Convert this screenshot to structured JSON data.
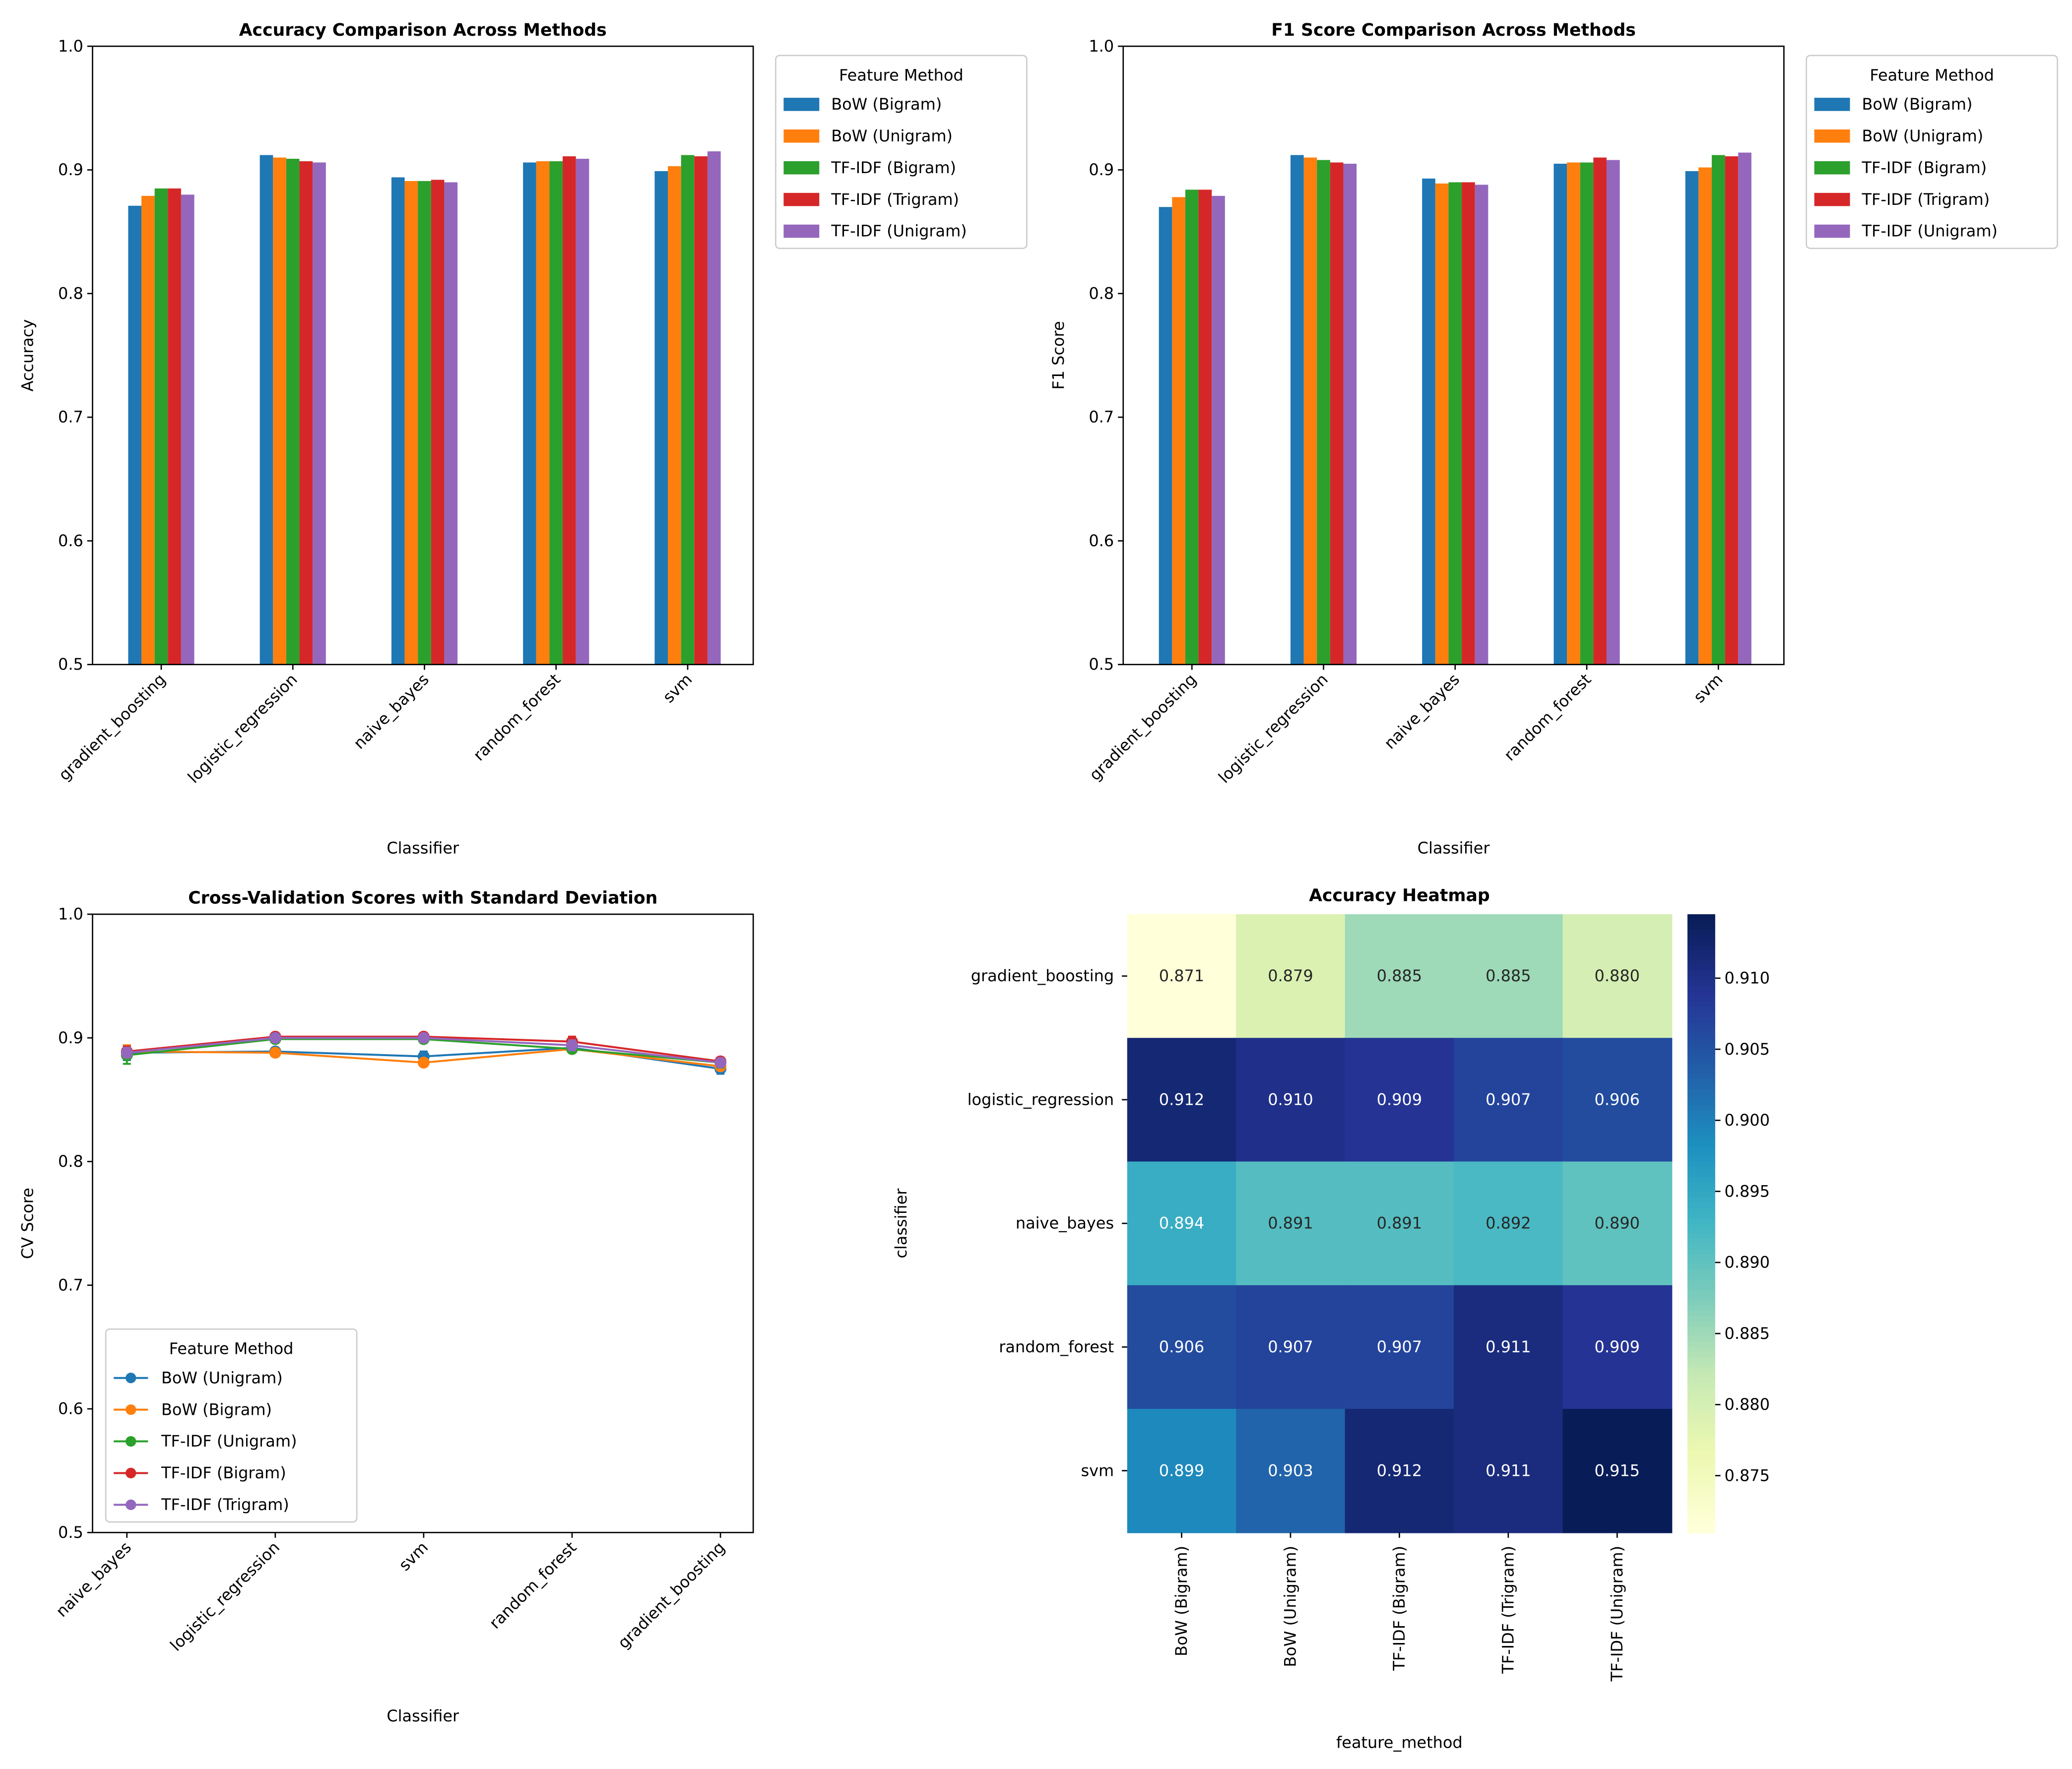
{
  "colors": {
    "BoW (Bigram)": "#1f77b4",
    "BoW (Unigram)": "#ff7f0e",
    "TF-IDF (Bigram)": "#2ca02c",
    "TF-IDF (Trigram)": "#d62728",
    "TF-IDF (Unigram)": "#9467bd",
    "BoW (Unigram) cv": "#1f77b4"
  },
  "chart_data": [
    {
      "type": "bar",
      "title": "Accuracy Comparison Across Methods",
      "xlabel": "Classifier",
      "ylabel": "Accuracy",
      "ylim": [
        0.5,
        1.0
      ],
      "yticks": [
        "0.5",
        "0.6",
        "0.7",
        "0.8",
        "0.9",
        "1.0"
      ],
      "categories": [
        "gradient_boosting",
        "logistic_regression",
        "naive_bayes",
        "random_forest",
        "svm"
      ],
      "legend_title": "Feature Method",
      "legend": "outside-top-right",
      "series": [
        {
          "name": "BoW (Bigram)",
          "color": "#1f77b4",
          "values": [
            0.871,
            0.912,
            0.894,
            0.906,
            0.899
          ]
        },
        {
          "name": "BoW (Unigram)",
          "color": "#ff7f0e",
          "values": [
            0.879,
            0.91,
            0.891,
            0.907,
            0.903
          ]
        },
        {
          "name": "TF-IDF (Bigram)",
          "color": "#2ca02c",
          "values": [
            0.885,
            0.909,
            0.891,
            0.907,
            0.912
          ]
        },
        {
          "name": "TF-IDF (Trigram)",
          "color": "#d62728",
          "values": [
            0.885,
            0.907,
            0.892,
            0.911,
            0.911
          ]
        },
        {
          "name": "TF-IDF (Unigram)",
          "color": "#9467bd",
          "values": [
            0.88,
            0.906,
            0.89,
            0.909,
            0.915
          ]
        }
      ]
    },
    {
      "type": "bar",
      "title": "F1 Score Comparison Across Methods",
      "xlabel": "Classifier",
      "ylabel": "F1 Score",
      "ylim": [
        0.5,
        1.0
      ],
      "yticks": [
        "0.5",
        "0.6",
        "0.7",
        "0.8",
        "0.9",
        "1.0"
      ],
      "categories": [
        "gradient_boosting",
        "logistic_regression",
        "naive_bayes",
        "random_forest",
        "svm"
      ],
      "legend_title": "Feature Method",
      "legend": "outside-top-right",
      "series": [
        {
          "name": "BoW (Bigram)",
          "color": "#1f77b4",
          "values": [
            0.87,
            0.912,
            0.893,
            0.905,
            0.899
          ]
        },
        {
          "name": "BoW (Unigram)",
          "color": "#ff7f0e",
          "values": [
            0.878,
            0.91,
            0.889,
            0.906,
            0.902
          ]
        },
        {
          "name": "TF-IDF (Bigram)",
          "color": "#2ca02c",
          "values": [
            0.884,
            0.908,
            0.89,
            0.906,
            0.912
          ]
        },
        {
          "name": "TF-IDF (Trigram)",
          "color": "#d62728",
          "values": [
            0.884,
            0.906,
            0.89,
            0.91,
            0.911
          ]
        },
        {
          "name": "TF-IDF (Unigram)",
          "color": "#9467bd",
          "values": [
            0.879,
            0.905,
            0.888,
            0.908,
            0.914
          ]
        }
      ]
    },
    {
      "type": "line",
      "title": "Cross-Validation Scores with Standard Deviation",
      "xlabel": "Classifier",
      "ylabel": "CV Score",
      "ylim": [
        0.5,
        1.0
      ],
      "yticks": [
        "0.5",
        "0.6",
        "0.7",
        "0.8",
        "0.9",
        "1.0"
      ],
      "categories": [
        "naive_bayes",
        "logistic_regression",
        "svm",
        "random_forest",
        "gradient_boosting"
      ],
      "legend_title": "Feature Method",
      "legend": "lower-left",
      "series": [
        {
          "name": "BoW (Unigram)",
          "color": "#1f77b4",
          "values": [
            0.888,
            0.889,
            0.885,
            0.892,
            0.875
          ],
          "std": [
            0.006,
            0.002,
            0.004,
            0.003,
            0.004
          ]
        },
        {
          "name": "BoW (Bigram)",
          "color": "#ff7f0e",
          "values": [
            0.889,
            0.888,
            0.88,
            0.891,
            0.877
          ],
          "std": [
            0.005,
            0.002,
            0.002,
            0.002,
            0.003
          ]
        },
        {
          "name": "TF-IDF (Unigram)",
          "color": "#2ca02c",
          "values": [
            0.886,
            0.899,
            0.899,
            0.891,
            0.88
          ],
          "std": [
            0.007,
            0.002,
            0.002,
            0.003,
            0.004
          ]
        },
        {
          "name": "TF-IDF (Bigram)",
          "color": "#d62728",
          "values": [
            0.889,
            0.901,
            0.901,
            0.897,
            0.881
          ],
          "std": [
            0.004,
            0.002,
            0.002,
            0.004,
            0.003
          ]
        },
        {
          "name": "TF-IDF (Trigram)",
          "color": "#9467bd",
          "values": [
            0.888,
            0.9,
            0.9,
            0.894,
            0.88
          ],
          "std": [
            0.004,
            0.002,
            0.002,
            0.004,
            0.003
          ]
        }
      ]
    },
    {
      "type": "heatmap",
      "title": "Accuracy Heatmap",
      "xlabel": "feature_method",
      "ylabel": "classifier",
      "colormap": "YlGnBu",
      "vrange": [
        0.871,
        0.915
      ],
      "colorbar_ticks": [
        "0.875",
        "0.880",
        "0.885",
        "0.890",
        "0.895",
        "0.900",
        "0.905",
        "0.910"
      ],
      "rows": [
        "gradient_boosting",
        "logistic_regression",
        "naive_bayes",
        "random_forest",
        "svm"
      ],
      "cols": [
        "BoW (Bigram)",
        "BoW (Unigram)",
        "TF-IDF (Bigram)",
        "TF-IDF (Trigram)",
        "TF-IDF (Unigram)"
      ],
      "values": [
        [
          0.871,
          0.879,
          0.885,
          0.885,
          0.88
        ],
        [
          0.912,
          0.91,
          0.909,
          0.907,
          0.906
        ],
        [
          0.894,
          0.891,
          0.891,
          0.892,
          0.89
        ],
        [
          0.906,
          0.907,
          0.907,
          0.911,
          0.909
        ],
        [
          0.899,
          0.903,
          0.912,
          0.911,
          0.915
        ]
      ],
      "labels": [
        [
          "0.871",
          "0.879",
          "0.885",
          "0.885",
          "0.880"
        ],
        [
          "0.912",
          "0.910",
          "0.909",
          "0.907",
          "0.906"
        ],
        [
          "0.894",
          "0.891",
          "0.891",
          "0.892",
          "0.890"
        ],
        [
          "0.906",
          "0.907",
          "0.907",
          "0.911",
          "0.909"
        ],
        [
          "0.899",
          "0.903",
          "0.912",
          "0.911",
          "0.915"
        ]
      ]
    }
  ]
}
